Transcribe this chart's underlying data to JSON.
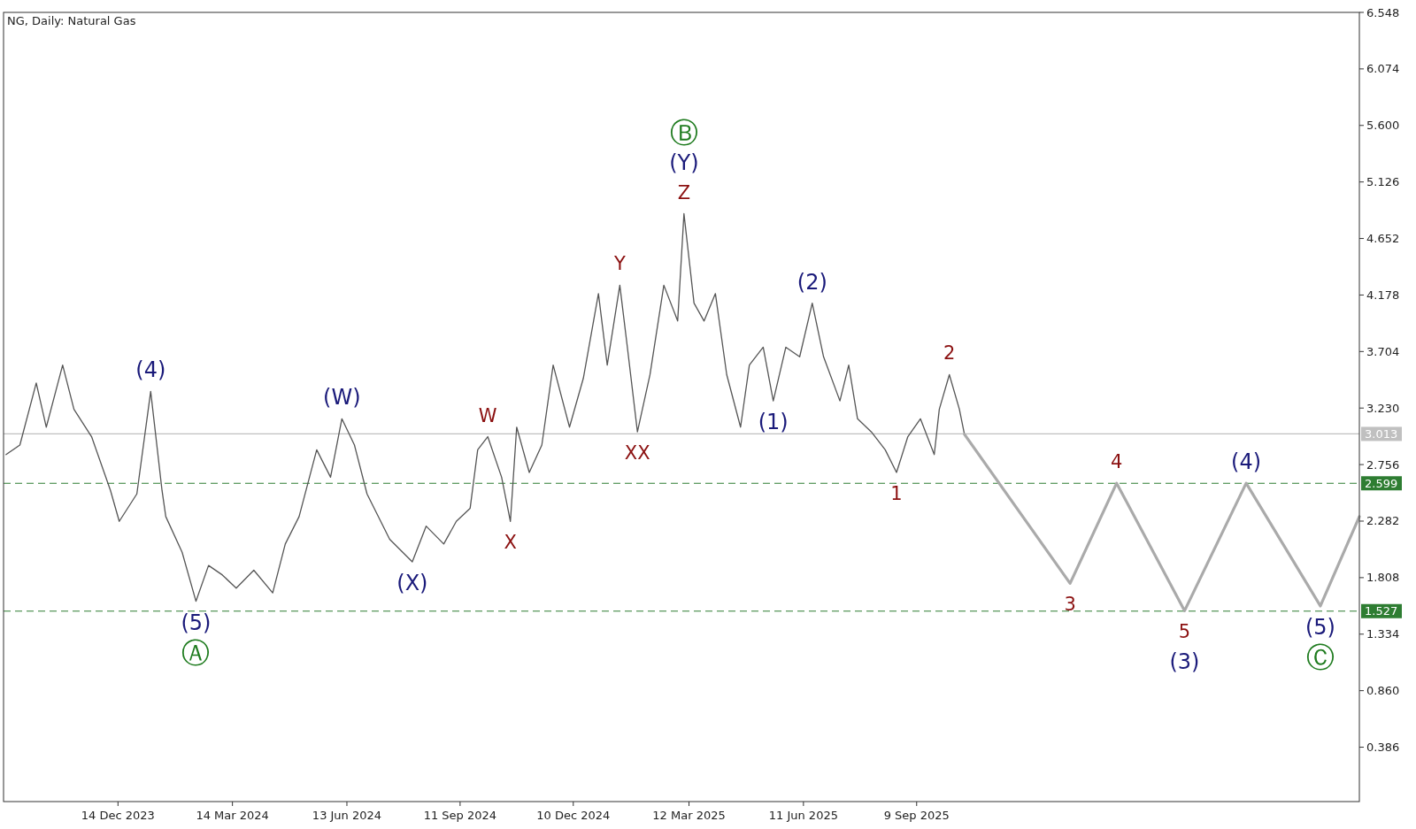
{
  "chart_data": {
    "type": "line",
    "title": "NG, Daily:  Natural Gas",
    "xlim": [
      "2023-09-14",
      "2026-08-27"
    ],
    "xticks": [
      {
        "value": "2023-12-14",
        "label": "14 Dec 2023"
      },
      {
        "value": "2024-03-14",
        "label": "14 Mar 2024"
      },
      {
        "value": "2024-06-13",
        "label": "13 Jun 2024"
      },
      {
        "value": "2024-09-11",
        "label": "11 Sep 2024"
      },
      {
        "value": "2024-12-10",
        "label": "10 Dec 2024"
      },
      {
        "value": "2025-03-12",
        "label": "12 Mar 2025"
      },
      {
        "value": "2025-06-11",
        "label": "11 Jun 2025"
      },
      {
        "value": "2025-09-09",
        "label": "9 Sep 2025"
      }
    ],
    "ylim": [
      -0.07,
      6.548
    ],
    "yticks": [
      {
        "value": 0.386,
        "label": "0.386"
      },
      {
        "value": 0.86,
        "label": "0.860"
      },
      {
        "value": 1.334,
        "label": "1.334"
      },
      {
        "value": 1.808,
        "label": "1.808"
      },
      {
        "value": 2.282,
        "label": "2.282"
      },
      {
        "value": 2.756,
        "label": "2.756"
      },
      {
        "value": 3.23,
        "label": "3.230"
      },
      {
        "value": 3.704,
        "label": "3.704"
      },
      {
        "value": 4.178,
        "label": "4.178"
      },
      {
        "value": 4.652,
        "label": "4.652"
      },
      {
        "value": 5.126,
        "label": "5.126"
      },
      {
        "value": 5.6,
        "label": "5.600"
      },
      {
        "value": 6.074,
        "label": "6.074"
      },
      {
        "value": 6.548,
        "label": "6.548"
      }
    ],
    "grid": false,
    "series": [
      {
        "color": "#555555",
        "line_style": "solid",
        "x": [
          "2023-09-16",
          "2023-09-27",
          "2023-10-10",
          "2023-10-18",
          "2023-10-31",
          "2023-11-09",
          "2023-11-23",
          "2023-12-08",
          "2023-12-15",
          "2023-12-29",
          "2024-01-09",
          "2024-01-18",
          "2024-01-21",
          "2024-02-03",
          "2024-02-14",
          "2024-02-24",
          "2024-03-06",
          "2024-03-17",
          "2024-03-31",
          "2024-04-15",
          "2024-04-25",
          "2024-05-06",
          "2024-05-20",
          "2024-05-31",
          "2024-06-09",
          "2024-06-19",
          "2024-06-29",
          "2024-07-17",
          "2024-08-04",
          "2024-08-15",
          "2024-08-29",
          "2024-09-08",
          "2024-09-19",
          "2024-09-25",
          "2024-10-03",
          "2024-10-14",
          "2024-10-21",
          "2024-10-26",
          "2024-11-05",
          "2024-11-15",
          "2024-11-24",
          "2024-12-07",
          "2024-12-18",
          "2024-12-30",
          "2025-01-06",
          "2025-01-16",
          "2025-01-22",
          "2025-01-30",
          "2025-02-09",
          "2025-02-20",
          "2025-03-03",
          "2025-03-08",
          "2025-03-16",
          "2025-03-24",
          "2025-04-02",
          "2025-04-11",
          "2025-04-22",
          "2025-04-29",
          "2025-05-10",
          "2025-05-18",
          "2025-05-28",
          "2025-06-08",
          "2025-06-18",
          "2025-06-27",
          "2025-07-10",
          "2025-07-17",
          "2025-07-24",
          "2025-08-04",
          "2025-08-15",
          "2025-08-24",
          "2025-09-02",
          "2025-09-12",
          "2025-09-23",
          "2025-09-27",
          "2025-10-05",
          "2025-10-13",
          "2025-10-17"
        ],
        "values": [
          2.84,
          2.92,
          3.44,
          3.07,
          3.59,
          3.22,
          2.99,
          2.54,
          2.28,
          2.51,
          3.37,
          2.54,
          2.32,
          2.02,
          1.61,
          1.91,
          1.83,
          1.72,
          1.87,
          1.68,
          2.09,
          2.32,
          2.88,
          2.65,
          3.14,
          2.92,
          2.51,
          2.13,
          1.94,
          2.24,
          2.09,
          2.28,
          2.39,
          2.88,
          2.99,
          2.65,
          2.28,
          3.07,
          2.69,
          2.92,
          3.59,
          3.07,
          3.48,
          4.19,
          3.59,
          4.26,
          3.74,
          3.03,
          3.51,
          4.26,
          3.96,
          4.86,
          4.11,
          3.96,
          4.19,
          3.51,
          3.07,
          3.59,
          3.74,
          3.29,
          3.74,
          3.66,
          4.11,
          3.66,
          3.29,
          3.59,
          3.14,
          3.03,
          2.88,
          2.69,
          2.99,
          3.14,
          2.84,
          3.22,
          3.51,
          3.22,
          3.01
        ]
      },
      {
        "color": "#aaaaaa",
        "line_style": "solid",
        "x": [
          "2025-10-17",
          "2026-01-09",
          "2026-02-15",
          "2026-04-10",
          "2026-05-29",
          "2026-07-27",
          "2026-08-27"
        ],
        "values": [
          3.01,
          1.76,
          2.6,
          1.53,
          2.6,
          1.57,
          2.32
        ]
      }
    ],
    "ref_lines": [
      {
        "axis": "y",
        "value": 3.013,
        "label": "3.013",
        "color": "#c0c0c0",
        "line_style": "solid"
      },
      {
        "axis": "y",
        "value": 2.599,
        "label": "2.599",
        "color": "#2e7d32",
        "line_style": "dashed"
      },
      {
        "axis": "y",
        "value": 1.527,
        "label": "1.527",
        "color": "#2e7d32",
        "line_style": "dashed"
      }
    ],
    "annotations": [
      {
        "text": "Z",
        "x": "2025-03-08",
        "y": 4.86
      },
      {
        "text": "(Y)",
        "x": "2025-03-08",
        "y": 4.86
      },
      {
        "text": "Ⓑ",
        "x": "2025-03-08",
        "y": 4.86
      },
      {
        "text": "Y",
        "x": "2025-01-16",
        "y": 4.26
      },
      {
        "text": "W",
        "x": "2024-10-03",
        "y": 2.99
      },
      {
        "text": "XX",
        "x": "2025-01-30",
        "y": 3.03
      },
      {
        "text": "X",
        "x": "2024-10-21",
        "y": 2.28
      },
      {
        "text": "(4)",
        "x": "2024-01-09",
        "y": 3.37
      },
      {
        "text": "(W)",
        "x": "2024-06-09",
        "y": 3.14
      },
      {
        "text": "(X)",
        "x": "2024-08-04",
        "y": 1.94
      },
      {
        "text": "(5)",
        "x": "2024-02-14",
        "y": 1.61
      },
      {
        "text": "Ⓐ",
        "x": "2024-02-14",
        "y": 1.61
      },
      {
        "text": "(1)",
        "x": "2025-05-18",
        "y": 3.29
      },
      {
        "text": "(2)",
        "x": "2025-06-18",
        "y": 4.11
      },
      {
        "text": "1",
        "x": "2025-08-24",
        "y": 2.69
      },
      {
        "text": "2",
        "x": "2025-10-05",
        "y": 3.51
      },
      {
        "text": "3",
        "x": "2026-01-09",
        "y": 1.76
      },
      {
        "text": "4",
        "x": "2026-02-15",
        "y": 2.6
      },
      {
        "text": "5",
        "x": "2026-04-10",
        "y": 1.53
      },
      {
        "text": "(3)",
        "x": "2026-04-10",
        "y": 1.53
      },
      {
        "text": "(4)",
        "x": "2026-05-29",
        "y": 2.6
      },
      {
        "text": "(5)",
        "x": "2026-07-27",
        "y": 1.57
      },
      {
        "text": "Ⓒ",
        "x": "2026-07-27",
        "y": 1.57
      }
    ]
  }
}
